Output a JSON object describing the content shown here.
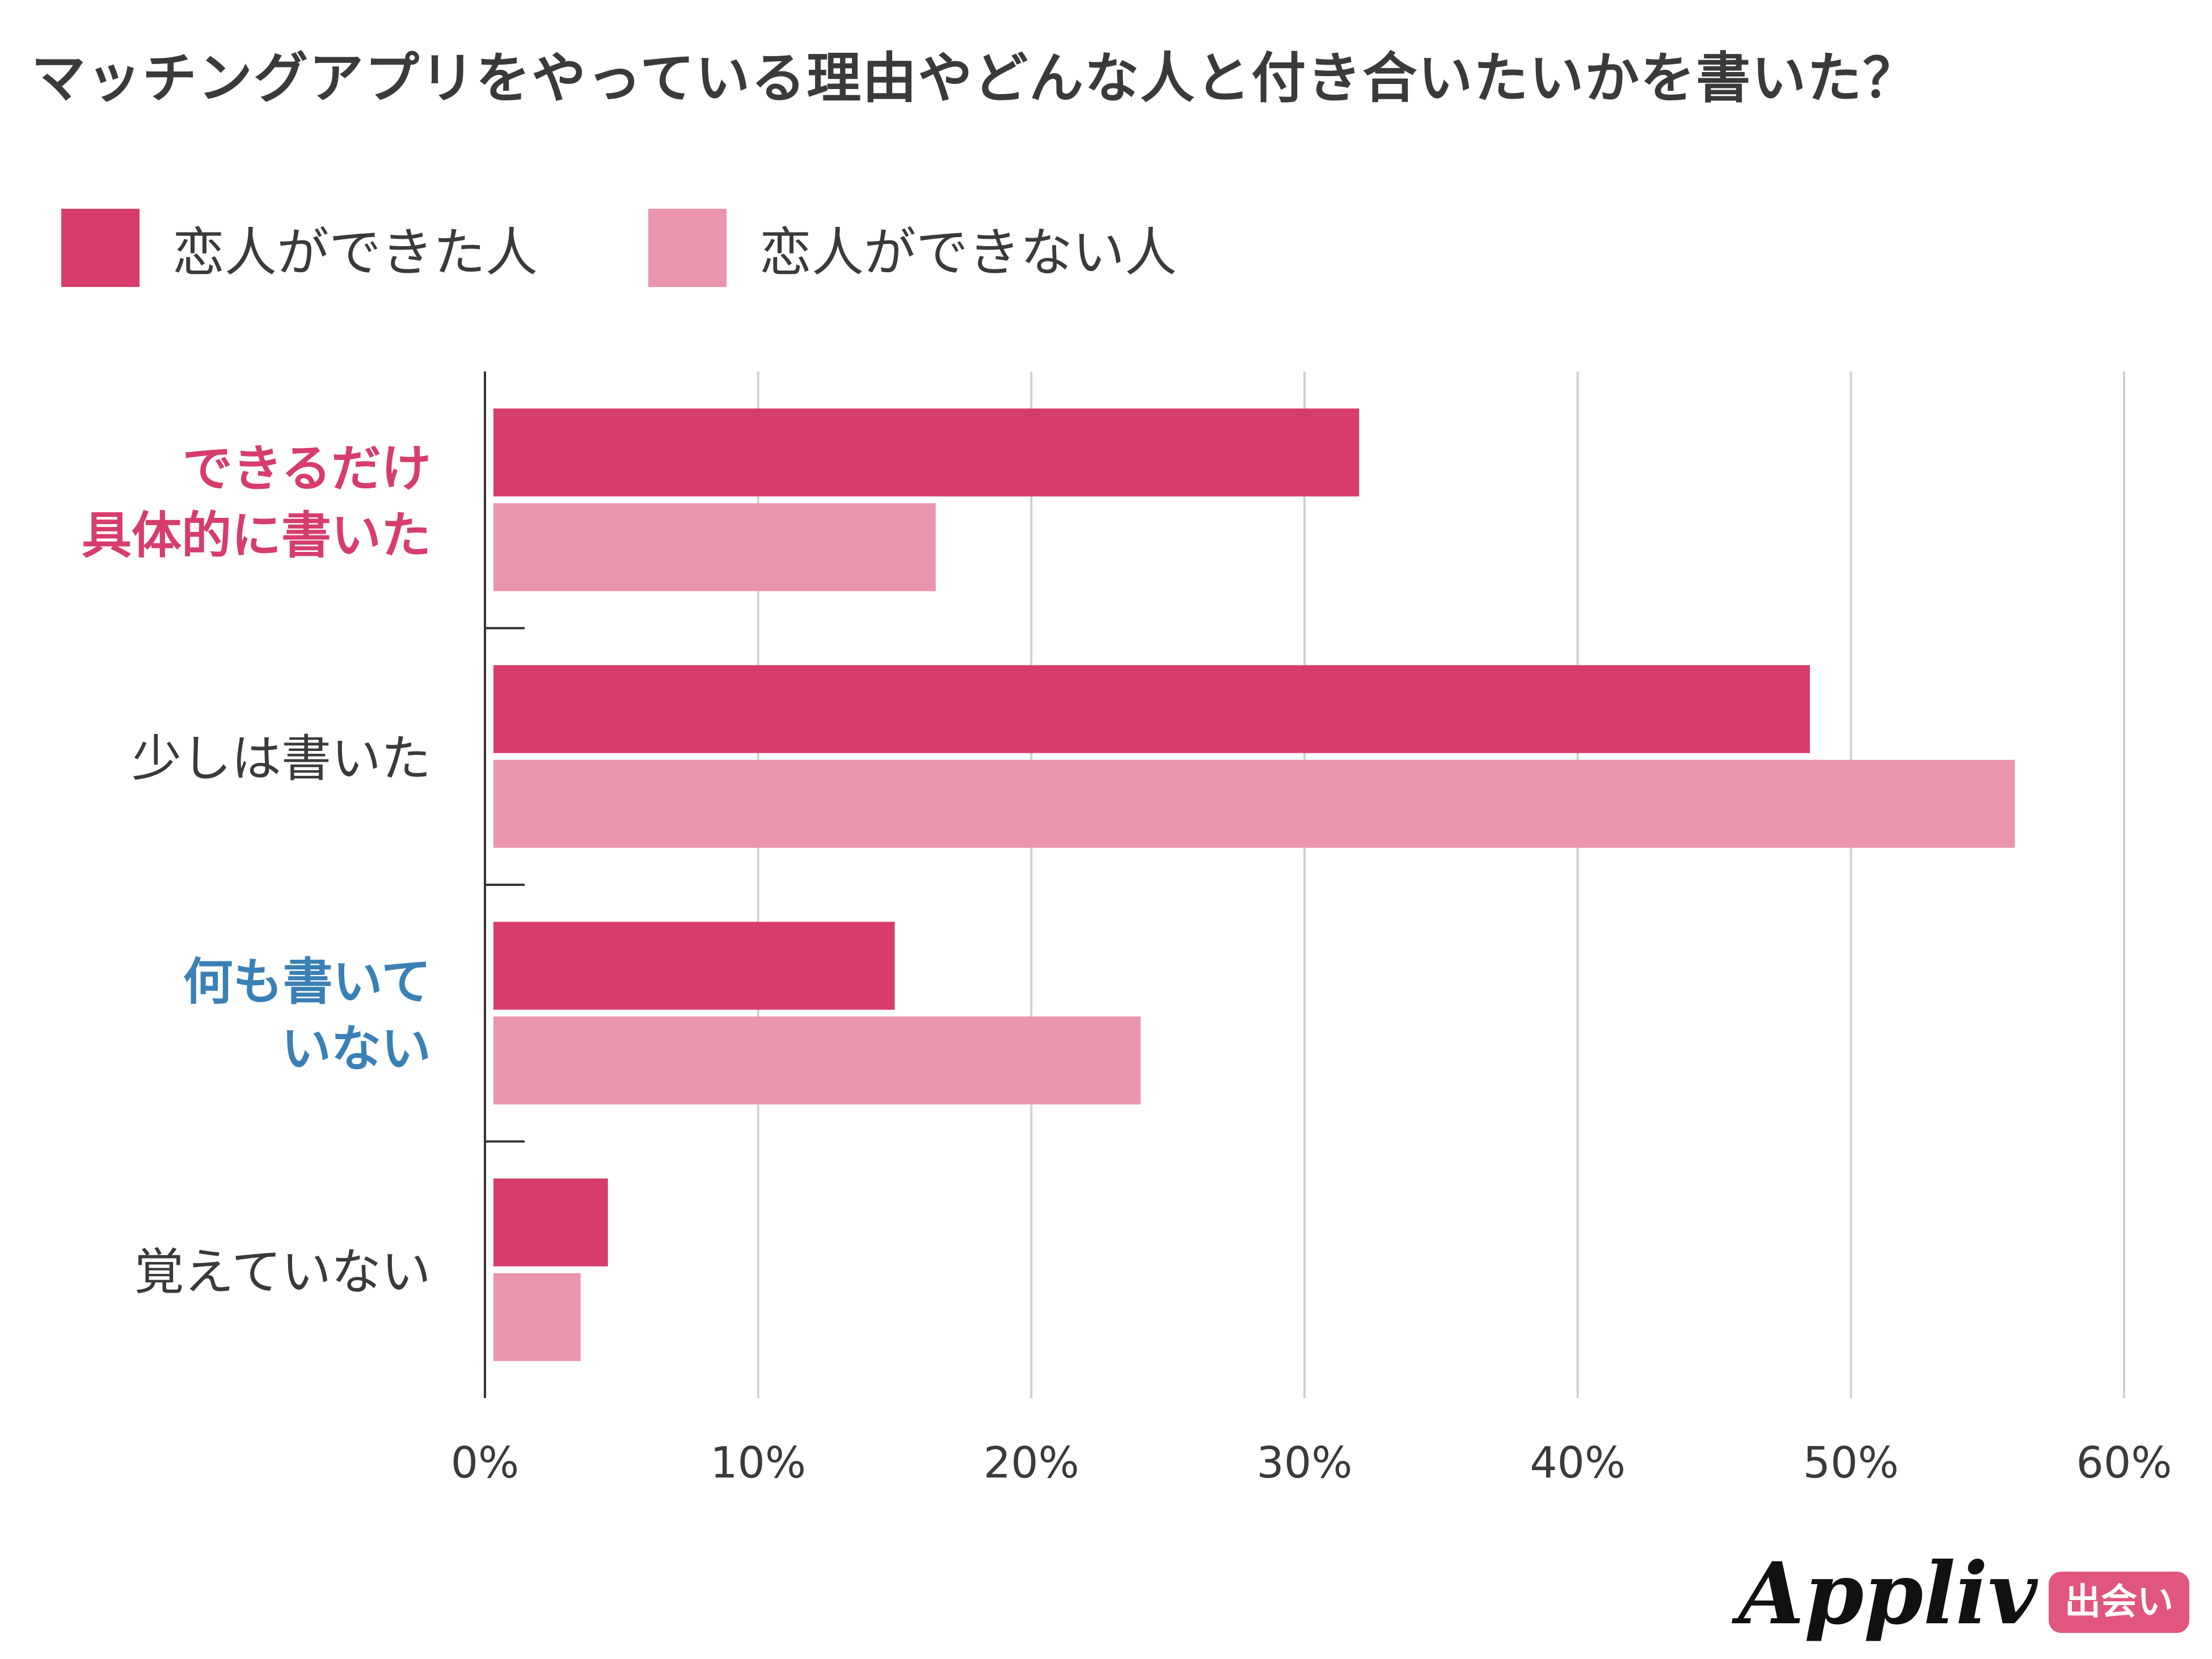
{
  "title": "マッチングアプリをやっている理由やどんな人と付き合いたいかを書いた？",
  "colors": {
    "accent": "#d63d6d",
    "light": "#ea94ae",
    "highlight_pink": "#d63d6d",
    "highlight_blue": "#3a80b5",
    "text": "#3a3a3a",
    "grid": "#d0d0d0"
  },
  "legend": [
    {
      "label": "恋人ができた人",
      "color": "#d63d6d"
    },
    {
      "label": "恋人ができない人",
      "color": "#ea94ae"
    }
  ],
  "chart_data": {
    "type": "bar",
    "orientation": "horizontal",
    "title": "マッチングアプリをやっている理由やどんな人と付き合いたいかを書いた？",
    "categories": [
      {
        "lines": [
          "できるだけ",
          "具体的に書いた"
        ],
        "label_color": "#d63d6d",
        "bold": true
      },
      {
        "lines": [
          "少しは書いた"
        ],
        "label_color": "#3a3a3a",
        "bold": false
      },
      {
        "lines": [
          "何も書いて",
          "いない"
        ],
        "label_color": "#3a80b5",
        "bold": true
      },
      {
        "lines": [
          "覚えていない"
        ],
        "label_color": "#3a3a3a",
        "bold": false
      }
    ],
    "series": [
      {
        "name": "恋人ができた人",
        "color": "#d63d6d",
        "values": [
          32,
          48.5,
          15,
          4.5
        ]
      },
      {
        "name": "恋人ができない人",
        "color": "#ea94ae",
        "values": [
          16.5,
          56,
          24,
          3.5
        ]
      }
    ],
    "xlim": [
      0,
      60
    ],
    "ticks": [
      0,
      10,
      20,
      30,
      40,
      50,
      60
    ],
    "tick_labels": [
      "0%",
      "10%",
      "20%",
      "30%",
      "40%",
      "50%",
      "60%"
    ],
    "grid": true,
    "legend_position": "top-left"
  },
  "brand": {
    "logo_text": "Appliv",
    "badge_text": "出会い"
  }
}
